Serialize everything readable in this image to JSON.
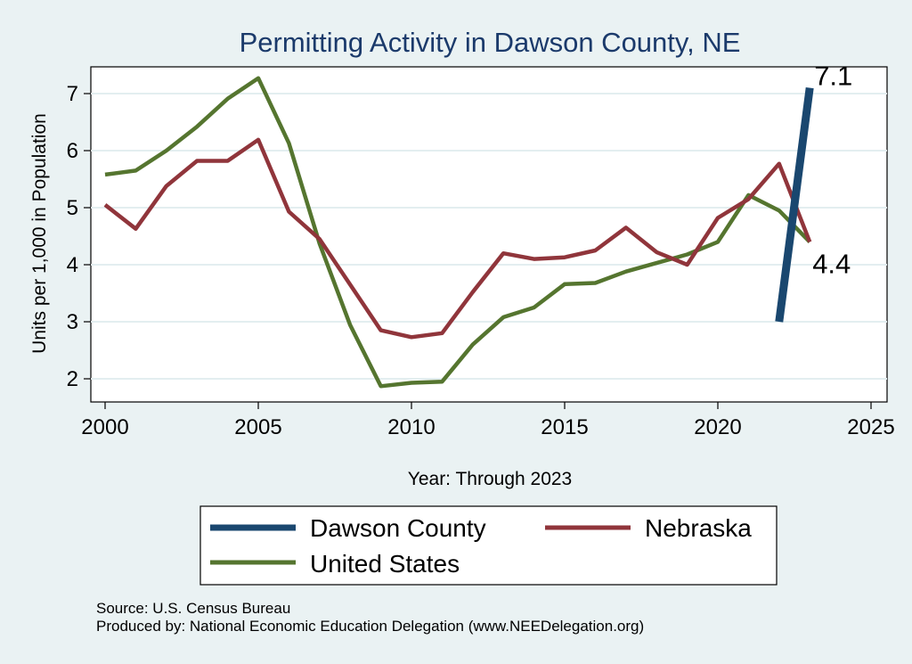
{
  "chart_data": {
    "type": "line",
    "title": "Permitting Activity in Dawson County, NE",
    "xlabel": "Year: Through 2023",
    "ylabel": "Units per 1,000 in Population",
    "xlim": [
      2000,
      2025
    ],
    "ylim": [
      1.7,
      7.4
    ],
    "xticks": [
      "2000",
      "2005",
      "2010",
      "2015",
      "2020",
      "2025"
    ],
    "yticks": [
      "2",
      "3",
      "4",
      "5",
      "6",
      "7"
    ],
    "grid": true,
    "legend_position": "bottom",
    "series": [
      {
        "name": "Dawson County",
        "color": "#1a476f",
        "x": [
          2022,
          2023
        ],
        "y": [
          3.0,
          7.1
        ]
      },
      {
        "name": "Nebraska",
        "color": "#90353b",
        "x": [
          2000,
          2001,
          2002,
          2003,
          2004,
          2005,
          2006,
          2007,
          2008,
          2009,
          2010,
          2011,
          2012,
          2013,
          2014,
          2015,
          2016,
          2017,
          2018,
          2019,
          2020,
          2021,
          2022,
          2023
        ],
        "y": [
          5.05,
          4.63,
          5.38,
          5.82,
          5.82,
          6.19,
          4.93,
          4.45,
          3.65,
          2.85,
          2.73,
          2.8,
          3.52,
          4.2,
          4.1,
          4.13,
          4.25,
          4.65,
          4.22,
          4.0,
          4.82,
          5.15,
          5.77,
          4.4
        ]
      },
      {
        "name": "United States",
        "color": "#55752f",
        "x": [
          2000,
          2001,
          2002,
          2003,
          2004,
          2005,
          2006,
          2007,
          2008,
          2009,
          2010,
          2011,
          2012,
          2013,
          2014,
          2015,
          2016,
          2017,
          2018,
          2019,
          2020,
          2021,
          2022,
          2023
        ],
        "y": [
          5.58,
          5.65,
          6.0,
          6.42,
          6.91,
          7.27,
          6.13,
          4.37,
          2.94,
          1.87,
          1.93,
          1.95,
          2.6,
          3.08,
          3.25,
          3.66,
          3.68,
          3.88,
          4.03,
          4.18,
          4.4,
          5.22,
          4.95,
          4.4
        ]
      }
    ],
    "annotations": [
      {
        "text": "7.1",
        "x": 2023,
        "y": 7.1
      },
      {
        "text": "4.4",
        "x": 2023,
        "y": 4.4
      }
    ]
  },
  "footer": {
    "source": "Source: U.S. Census Bureau",
    "produced_by": "Produced by: National Economic Education Delegation (www.NEEDelegation.org)"
  }
}
